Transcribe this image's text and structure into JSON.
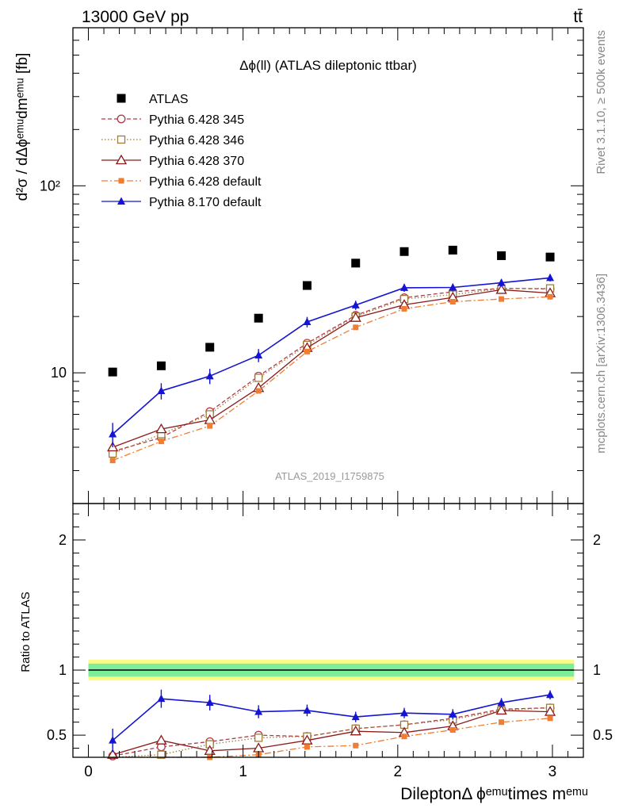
{
  "header": {
    "left": "13000 GeV pp",
    "right": "tt̄"
  },
  "side_text": {
    "rivet": "Rivet 3.1.10, ≥ 500k events",
    "mcplots": "mcplots.cern.ch [arXiv:1306.3436]"
  },
  "colors": {
    "ATLAS": "#000000",
    "p345": "#b03a48",
    "p346": "#a07c3a",
    "p370": "#8b1a1a",
    "pdef": "#f07d32",
    "p8": "#1414d2",
    "band_inner": "#7fee9a",
    "band_outer": "#fbfb88"
  },
  "chart_data": [
    {
      "type": "scatter",
      "title": "Δϕ(ll) (ATLAS dileptonic ttbar)",
      "ylabel": "d²σ / dΔϕᵉᵐᵘdmᵉᵐᵘ [fb]",
      "yscale": "log",
      "ylim": [
        2,
        700
      ],
      "xlim": [
        -0.1,
        3.2
      ],
      "y_tick_labels": [
        "10",
        "10²"
      ],
      "watermark": "ATLAS_2019_I1759875",
      "legend_position": "top-left",
      "x": [
        0.157,
        0.471,
        0.785,
        1.1,
        1.414,
        1.728,
        2.042,
        2.356,
        2.67,
        2.985
      ],
      "series": [
        {
          "name": "ATLAS",
          "key": "ATLAS",
          "marker": "square",
          "line": "none",
          "values": [
            10.1,
            10.9,
            13.7,
            19.6,
            29.3,
            38.6,
            44.5,
            45.3,
            42.3,
            41.6
          ]
        },
        {
          "name": "Pythia 6.428 345",
          "key": "p345",
          "marker": "circle-open",
          "line": "dashed",
          "values": [
            3.8,
            4.5,
            6.2,
            9.6,
            14.4,
            20.3,
            25.2,
            27.1,
            28.3,
            28.1
          ]
        },
        {
          "name": "Pythia 6.428 346",
          "key": "p346",
          "marker": "square-open",
          "line": "dotted",
          "values": [
            3.7,
            4.7,
            6.0,
            9.4,
            14.1,
            20.0,
            24.8,
            26.2,
            28.2,
            28.3
          ]
        },
        {
          "name": "Pythia 6.428 370",
          "key": "p370",
          "marker": "triangle-open",
          "line": "solid",
          "values": [
            4.0,
            5.0,
            5.6,
            8.3,
            13.6,
            19.7,
            23.1,
            25.3,
            27.8,
            26.7
          ]
        },
        {
          "name": "Pythia 6.428 default",
          "key": "pdef",
          "marker": "square-small",
          "line": "dashdot",
          "values": [
            3.4,
            4.3,
            5.2,
            8.0,
            13.0,
            17.5,
            22.0,
            24.0,
            24.8,
            25.5
          ]
        },
        {
          "name": "Pythia 8.170 default",
          "key": "p8",
          "marker": "triangle",
          "line": "solid",
          "values": [
            4.7,
            8.0,
            9.6,
            12.4,
            18.7,
            23.0,
            28.5,
            28.6,
            30.3,
            32.2
          ],
          "errors": [
            0.7,
            0.8,
            0.9,
            1.0,
            1.2,
            1.3,
            1.4,
            1.4,
            1.4,
            1.4
          ]
        }
      ]
    },
    {
      "type": "scatter",
      "ylabel": "Ratio to ATLAS",
      "xlabel": "DileptonΔ ϕᵉᵐᵘtimes mᵉᵐᵘ",
      "ylim": [
        0.33,
        2.28
      ],
      "xlim": [
        -0.1,
        3.2
      ],
      "x_tick_labels": [
        "0",
        "1",
        "2",
        "3"
      ],
      "y_tick_labels": [
        "0.5",
        "1",
        "2"
      ],
      "band": {
        "inner": 0.05,
        "outer": 0.08
      },
      "x": [
        0.157,
        0.471,
        0.785,
        1.1,
        1.414,
        1.728,
        2.042,
        2.356,
        2.67,
        2.985
      ],
      "series": [
        {
          "key": "p345",
          "marker": "circle-open",
          "line": "dashed",
          "values": [
            0.34,
            0.41,
            0.45,
            0.5,
            0.49,
            0.55,
            0.58,
            0.63,
            0.7,
            0.71
          ]
        },
        {
          "key": "p346",
          "marker": "square-open",
          "line": "dotted",
          "values": [
            0.31,
            0.35,
            0.43,
            0.48,
            0.49,
            0.55,
            0.58,
            0.62,
            0.69,
            0.71
          ]
        },
        {
          "key": "p370",
          "marker": "triangle-open",
          "line": "solid",
          "values": [
            0.35,
            0.46,
            0.38,
            0.4,
            0.46,
            0.53,
            0.52,
            0.57,
            0.69,
            0.68
          ]
        },
        {
          "key": "pdef",
          "marker": "square-small",
          "line": "dashdot",
          "values": [
            0.3,
            0.32,
            0.33,
            0.35,
            0.41,
            0.42,
            0.49,
            0.54,
            0.6,
            0.63
          ]
        },
        {
          "key": "p8",
          "marker": "triangle",
          "line": "solid",
          "values": [
            0.46,
            0.78,
            0.75,
            0.68,
            0.69,
            0.64,
            0.67,
            0.66,
            0.75,
            0.81
          ],
          "errors": [
            0.09,
            0.07,
            0.06,
            0.05,
            0.045,
            0.04,
            0.04,
            0.04,
            0.035,
            0.035
          ]
        }
      ]
    }
  ]
}
